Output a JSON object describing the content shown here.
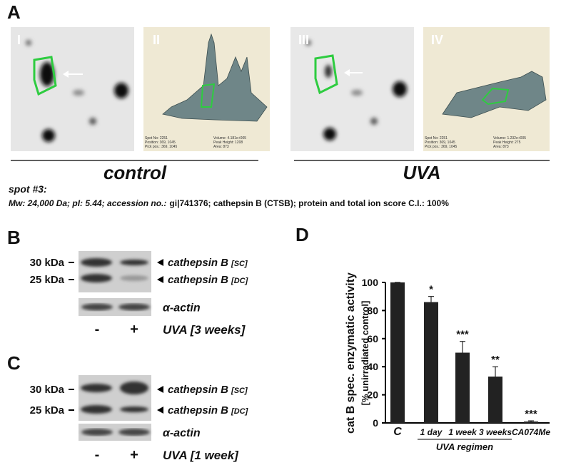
{
  "panel_a": {
    "label": "A",
    "image_labels": [
      "I",
      "II",
      "III",
      "IV"
    ],
    "plot_info": [
      {
        "left": [
          "Spot No:    2251",
          "Position:   369, 1045",
          "Pick pos.:  369, 1045"
        ],
        "right": [
          "Volume:        4.181e+005",
          "Peak Height:  1208",
          "Area:            873"
        ]
      },
      {
        "left": [
          "Spot No:    2251",
          "Position:   369, 1045",
          "Pick pos.:  369, 1045"
        ],
        "right": [
          "Volume:        1.232e+005",
          "Peak Height:  275",
          "Area:            873"
        ]
      }
    ],
    "group_labels": [
      "control",
      "UVA"
    ],
    "spot_title": "spot #3:",
    "spot_details": [
      {
        "text": "Mw: 24,000 Da; pI: 5.44; accession no.:",
        "italic": true
      },
      {
        "text": "gi|741376; cathepsin B (CTSB); protein and total ion score C.I.: 100%",
        "italic": false
      }
    ]
  },
  "panel_b": {
    "label": "B",
    "markers": [
      "30 kDa",
      "25 kDa"
    ],
    "bands": [
      {
        "name": "cathepsin B",
        "form": "[SC]"
      },
      {
        "name": "cathepsin B",
        "form": "[DC]"
      }
    ],
    "loading_control": "α-actin",
    "lanes": [
      "-",
      "+"
    ],
    "treatment": "UVA [3 weeks]"
  },
  "panel_c": {
    "label": "C",
    "markers": [
      "30 kDa",
      "25 kDa"
    ],
    "bands": [
      {
        "name": "cathepsin B",
        "form": "[SC]"
      },
      {
        "name": "cathepsin B",
        "form": "[DC]"
      }
    ],
    "loading_control": "α-actin",
    "lanes": [
      "-",
      "+"
    ],
    "treatment": "UVA [1 week]"
  },
  "panel_d": {
    "label": "D"
  },
  "chart_data": {
    "type": "bar",
    "ylabel": "cat B spec. enzymatic activity",
    "ylabel2": "[% unirradiated control]",
    "categories": [
      "C",
      "1 day",
      "1 week",
      "3 weeks",
      "CA074Me"
    ],
    "values": [
      100,
      86,
      50,
      33,
      1
    ],
    "errors": [
      0,
      4,
      8,
      7,
      0.5
    ],
    "annotations": [
      null,
      "*",
      "***",
      "**",
      "***"
    ],
    "group_label": "UVA regimen",
    "color": "#222222",
    "ylim": [
      0,
      100
    ],
    "yticks": [
      0,
      20,
      40,
      60,
      80,
      100
    ]
  }
}
